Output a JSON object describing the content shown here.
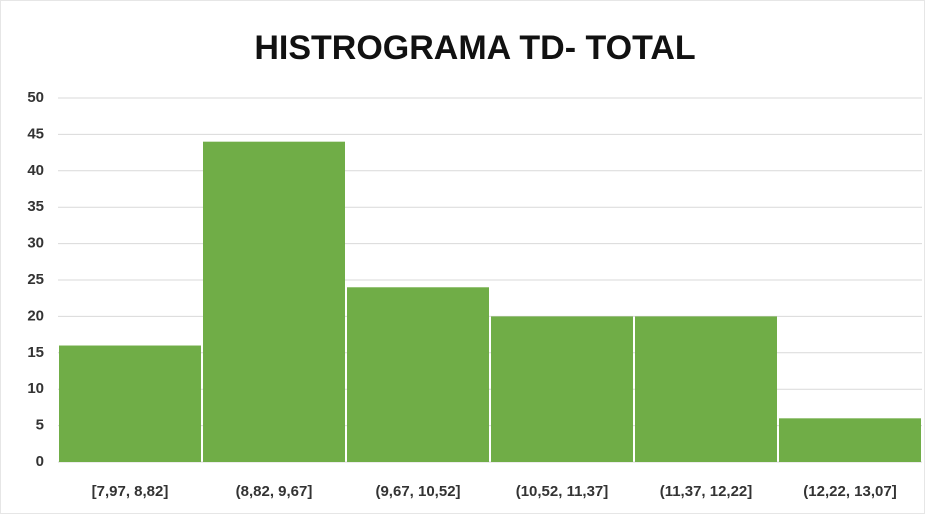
{
  "chart_data": {
    "type": "bar",
    "title": "HISTROGRAMA TD- TOTAL",
    "categories": [
      "[7,97, 8,82]",
      "(8,82, 9,67]",
      "(9,67, 10,52]",
      "(10,52, 11,37]",
      "(11,37, 12,22]",
      "(12,22, 13,07]"
    ],
    "values": [
      16,
      44,
      24,
      20,
      20,
      6
    ],
    "color": "#70ad47",
    "ylim": [
      0,
      50
    ],
    "yticks": [
      0,
      5,
      10,
      15,
      20,
      25,
      30,
      35,
      40,
      45,
      50
    ],
    "grid": true
  }
}
